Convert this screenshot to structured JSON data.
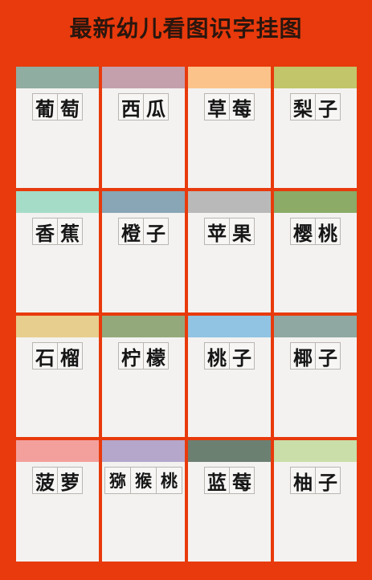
{
  "title": "最新幼儿看图识字挂图",
  "cards": [
    {
      "chars": [
        "葡",
        "萄"
      ],
      "color": "#8fada0"
    },
    {
      "chars": [
        "西",
        "瓜"
      ],
      "color": "#c4a0ad"
    },
    {
      "chars": [
        "草",
        "莓"
      ],
      "color": "#fbc38a"
    },
    {
      "chars": [
        "梨",
        "子"
      ],
      "color": "#c3c56a"
    },
    {
      "chars": [
        "香",
        "蕉"
      ],
      "color": "#a5dcc7"
    },
    {
      "chars": [
        "橙",
        "子"
      ],
      "color": "#88a6b5"
    },
    {
      "chars": [
        "苹",
        "果"
      ],
      "color": "#b9b9b9"
    },
    {
      "chars": [
        "樱",
        "桃"
      ],
      "color": "#8bab67"
    },
    {
      "chars": [
        "石",
        "榴"
      ],
      "color": "#e7ce8e"
    },
    {
      "chars": [
        "柠",
        "檬"
      ],
      "color": "#94a97b"
    },
    {
      "chars": [
        "桃",
        "子"
      ],
      "color": "#90c4e2"
    },
    {
      "chars": [
        "椰",
        "子"
      ],
      "color": "#8fa8a1"
    },
    {
      "chars": [
        "菠",
        "萝"
      ],
      "color": "#f3a09c"
    },
    {
      "chars": [
        "猕",
        "猴",
        "桃"
      ],
      "color": "#b5a7cb"
    },
    {
      "chars": [
        "蓝",
        "莓"
      ],
      "color": "#6c8072"
    },
    {
      "chars": [
        "柚",
        "子"
      ],
      "color": "#c9dea9"
    }
  ]
}
